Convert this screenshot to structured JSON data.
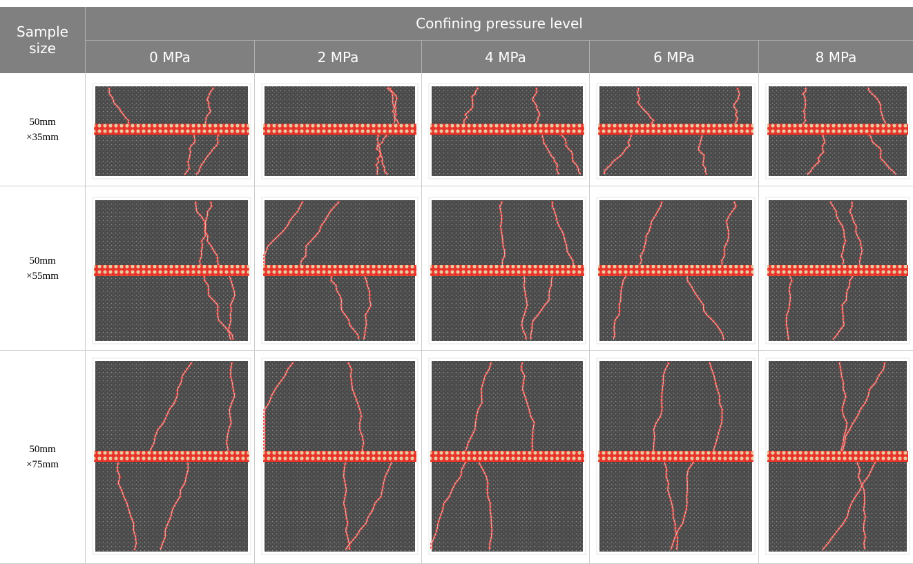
{
  "table": {
    "header": {
      "row_label": "Sample size",
      "group": "Confining pressure level",
      "columns": [
        "0 MPa",
        "2 MPa",
        "4 MPa",
        "6 MPa",
        "8 MPa"
      ]
    },
    "rows": [
      {
        "label": [
          "50mm",
          "×35mm"
        ]
      },
      {
        "label": [
          "50mm",
          "×55mm"
        ]
      },
      {
        "label": [
          "50mm",
          "×75mm"
        ]
      }
    ]
  }
}
